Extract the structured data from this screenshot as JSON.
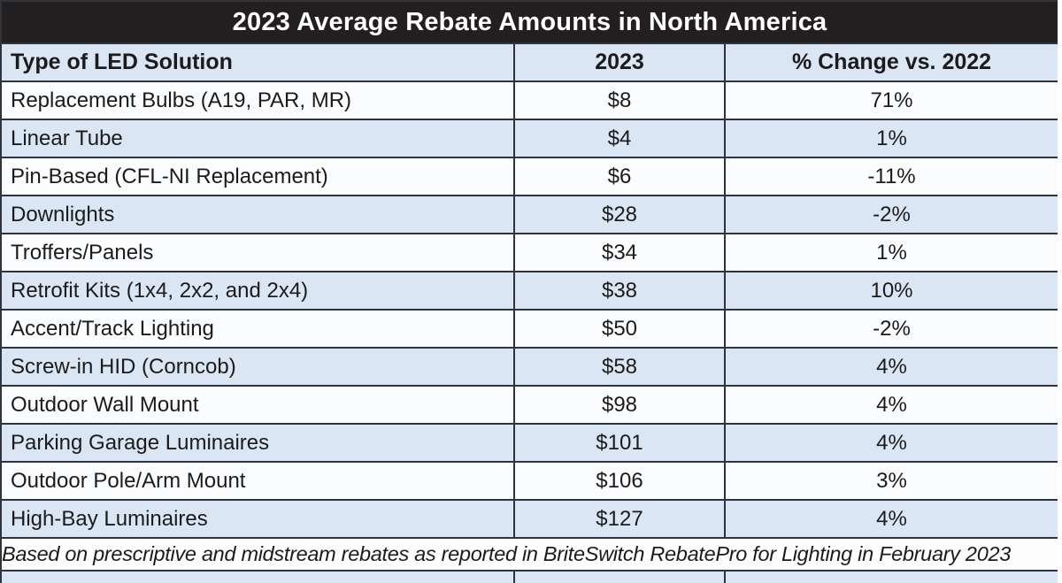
{
  "title": "2023 Average Rebate Amounts in North America",
  "chart_data": {
    "type": "table",
    "title": "2023 Average Rebate Amounts in North America",
    "columns": [
      "Type of LED Solution",
      "2023",
      "% Change vs. 2022"
    ],
    "rows": [
      {
        "solution": "Replacement Bulbs (A19, PAR, MR)",
        "amount_2023": "$8",
        "change_vs_2022": "71%"
      },
      {
        "solution": "Linear Tube",
        "amount_2023": "$4",
        "change_vs_2022": "1%"
      },
      {
        "solution": "Pin-Based (CFL-NI Replacement)",
        "amount_2023": "$6",
        "change_vs_2022": "-11%"
      },
      {
        "solution": "Downlights",
        "amount_2023": "$28",
        "change_vs_2022": "-2%"
      },
      {
        "solution": "Troffers/Panels",
        "amount_2023": "$34",
        "change_vs_2022": "1%"
      },
      {
        "solution": "Retrofit Kits (1x4, 2x2, and 2x4)",
        "amount_2023": "$38",
        "change_vs_2022": "10%"
      },
      {
        "solution": "Accent/Track Lighting",
        "amount_2023": "$50",
        "change_vs_2022": "-2%"
      },
      {
        "solution": "Screw-in HID (Corncob)",
        "amount_2023": "$58",
        "change_vs_2022": "4%"
      },
      {
        "solution": "Outdoor Wall Mount",
        "amount_2023": "$98",
        "change_vs_2022": "4%"
      },
      {
        "solution": "Parking Garage Luminaires",
        "amount_2023": "$101",
        "change_vs_2022": "4%"
      },
      {
        "solution": "Outdoor Pole/Arm Mount",
        "amount_2023": "$106",
        "change_vs_2022": "3%"
      },
      {
        "solution": "High-Bay Luminaires",
        "amount_2023": "$127",
        "change_vs_2022": "4%"
      }
    ],
    "footnote": "Based on prescriptive and midstream rebates as reported in BriteSwitch RebatePro for Lighting in February 2023",
    "layout": {
      "row_striping": "white / light-blue alternating, starting white",
      "grid": "on"
    }
  },
  "colors": {
    "title_bar_bg": "#231f20",
    "title_text": "#ffffff",
    "header_bg": "#dbe6f5",
    "alt_row_bg": "#dbe6f5",
    "row_bg": "#fbfcfe",
    "border": "#2f333c",
    "text": "#1b1b1b"
  }
}
